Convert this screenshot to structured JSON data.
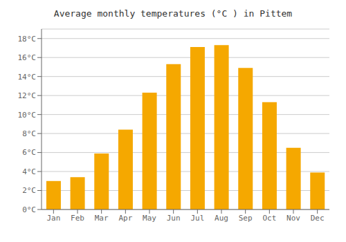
{
  "chart_data": {
    "type": "bar",
    "title": "Average monthly temperatures (°C ) in Pittem",
    "categories": [
      "Jan",
      "Feb",
      "Mar",
      "Apr",
      "May",
      "Jun",
      "Jul",
      "Aug",
      "Sep",
      "Oct",
      "Nov",
      "Dec"
    ],
    "values": [
      3.0,
      3.4,
      5.9,
      8.4,
      12.3,
      15.3,
      17.1,
      17.3,
      14.9,
      11.3,
      6.5,
      3.9
    ],
    "color": "#F5A800",
    "ylim": [
      0,
      19
    ],
    "yticks": [
      {
        "value": 0,
        "label": "0°C"
      },
      {
        "value": 2,
        "label": "2°C"
      },
      {
        "value": 4,
        "label": "4°C"
      },
      {
        "value": 6,
        "label": "6°C"
      },
      {
        "value": 8,
        "label": "8°C"
      },
      {
        "value": 10,
        "label": "10°C"
      },
      {
        "value": 12,
        "label": "12°C"
      },
      {
        "value": 14,
        "label": "14°C"
      },
      {
        "value": 16,
        "label": "16°C"
      },
      {
        "value": 18,
        "label": "18°C"
      }
    ],
    "grid": true
  }
}
